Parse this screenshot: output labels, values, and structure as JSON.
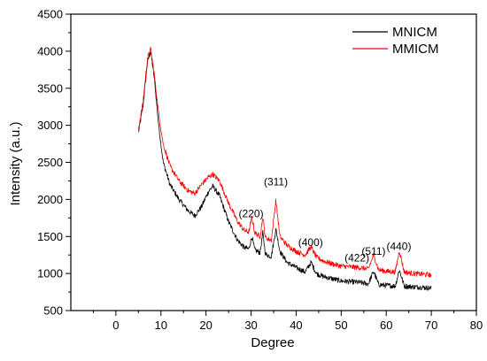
{
  "chart_data": {
    "type": "line",
    "title": "",
    "xlabel": "Degree",
    "ylabel": "Intensity (a.u.)",
    "xlim": [
      -10,
      80
    ],
    "ylim": [
      500,
      4500
    ],
    "x_ticks": [
      0,
      10,
      20,
      30,
      40,
      50,
      60,
      70,
      80
    ],
    "y_ticks": [
      500,
      1000,
      1500,
      2000,
      2500,
      3000,
      3500,
      4000,
      4500
    ],
    "grid": false,
    "legend_position": "top-right",
    "series": [
      {
        "name": "MNICM",
        "color": "#000000",
        "points": [
          [
            5,
            2900
          ],
          [
            6,
            3250
          ],
          [
            7,
            3850
          ],
          [
            7.7,
            4000
          ],
          [
            8.5,
            3650
          ],
          [
            9.5,
            3000
          ],
          [
            10.5,
            2500
          ],
          [
            12,
            2200
          ],
          [
            14,
            2000
          ],
          [
            16,
            1850
          ],
          [
            17.5,
            1780
          ],
          [
            19,
            1900
          ],
          [
            20.5,
            2100
          ],
          [
            21.5,
            2180
          ],
          [
            23,
            2050
          ],
          [
            25,
            1700
          ],
          [
            27,
            1450
          ],
          [
            28.5,
            1350
          ],
          [
            29.5,
            1330
          ],
          [
            30.2,
            1500
          ],
          [
            30.8,
            1320
          ],
          [
            32,
            1280
          ],
          [
            32.6,
            1550
          ],
          [
            33.2,
            1260
          ],
          [
            34.5,
            1230
          ],
          [
            35.5,
            1600
          ],
          [
            36.4,
            1300
          ],
          [
            38,
            1150
          ],
          [
            40,
            1080
          ],
          [
            42,
            1020
          ],
          [
            43.3,
            1150
          ],
          [
            44.5,
            1000
          ],
          [
            46,
            960
          ],
          [
            48,
            930
          ],
          [
            50,
            900
          ],
          [
            52,
            890
          ],
          [
            54,
            880
          ],
          [
            56,
            860
          ],
          [
            57.2,
            1030
          ],
          [
            58.3,
            850
          ],
          [
            60,
            840
          ],
          [
            62,
            830
          ],
          [
            62.9,
            1050
          ],
          [
            64,
            830
          ],
          [
            66,
            820
          ],
          [
            68,
            815
          ],
          [
            70,
            800
          ]
        ]
      },
      {
        "name": "MMICM",
        "color": "#ff0000",
        "points": [
          [
            5,
            2950
          ],
          [
            6,
            3300
          ],
          [
            7,
            3900
          ],
          [
            7.7,
            4030
          ],
          [
            8.5,
            3700
          ],
          [
            9.5,
            3150
          ],
          [
            10.5,
            2750
          ],
          [
            12,
            2450
          ],
          [
            14,
            2250
          ],
          [
            16,
            2120
          ],
          [
            17.5,
            2080
          ],
          [
            19,
            2200
          ],
          [
            20.5,
            2300
          ],
          [
            21.5,
            2340
          ],
          [
            23,
            2250
          ],
          [
            25,
            1950
          ],
          [
            27,
            1700
          ],
          [
            28.5,
            1580
          ],
          [
            29.5,
            1560
          ],
          [
            30.2,
            1760
          ],
          [
            30.8,
            1550
          ],
          [
            32,
            1500
          ],
          [
            32.6,
            1760
          ],
          [
            33.2,
            1480
          ],
          [
            34.5,
            1450
          ],
          [
            35.5,
            1990
          ],
          [
            36.4,
            1500
          ],
          [
            38,
            1380
          ],
          [
            40,
            1300
          ],
          [
            42,
            1250
          ],
          [
            43.3,
            1360
          ],
          [
            44.5,
            1220
          ],
          [
            46,
            1170
          ],
          [
            48,
            1130
          ],
          [
            50,
            1100
          ],
          [
            52,
            1090
          ],
          [
            54,
            1080
          ],
          [
            56,
            1060
          ],
          [
            57.2,
            1250
          ],
          [
            58.3,
            1050
          ],
          [
            60,
            1030
          ],
          [
            62,
            1020
          ],
          [
            62.9,
            1310
          ],
          [
            64,
            1020
          ],
          [
            66,
            1000
          ],
          [
            68,
            990
          ],
          [
            70,
            980
          ]
        ]
      }
    ],
    "annotations": [
      {
        "text": "(220)",
        "x": 30,
        "y": 1760
      },
      {
        "text": "(311)",
        "x": 35.5,
        "y": 2190
      },
      {
        "text": "(400)",
        "x": 43.2,
        "y": 1370
      },
      {
        "text": "(422)",
        "x": 53.5,
        "y": 1160
      },
      {
        "text": "(511)",
        "x": 57.2,
        "y": 1250
      },
      {
        "text": "(440)",
        "x": 62.8,
        "y": 1320
      }
    ]
  }
}
